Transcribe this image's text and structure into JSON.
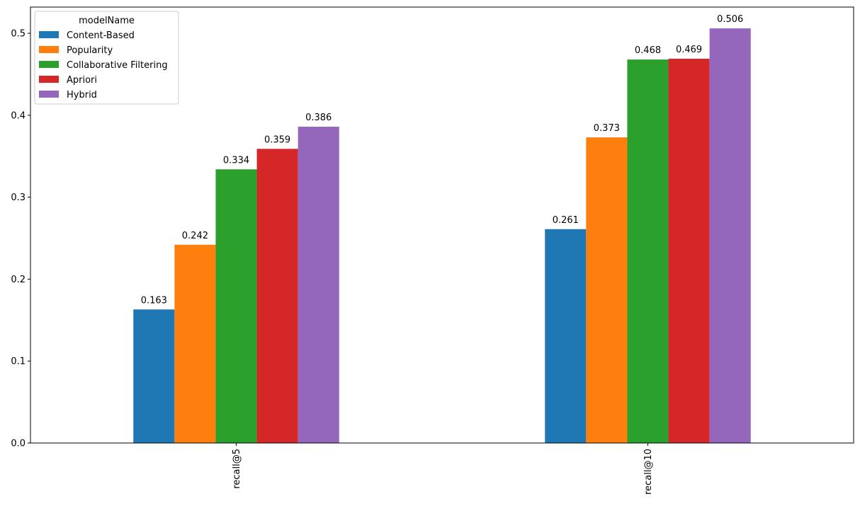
{
  "chart_data": {
    "type": "bar",
    "title": "",
    "xlabel": "",
    "ylabel": "",
    "categories": [
      "recall@5",
      "recall@10"
    ],
    "series": [
      {
        "name": "Content-Based",
        "color": "#1f77b4",
        "values": [
          0.163,
          0.261
        ],
        "labels": [
          "0.163",
          "0.261"
        ]
      },
      {
        "name": "Popularity",
        "color": "#ff7f0e",
        "values": [
          0.242,
          0.373
        ],
        "labels": [
          "0.242",
          "0.373"
        ]
      },
      {
        "name": "Collaborative Filtering",
        "color": "#2ca02c",
        "values": [
          0.334,
          0.468
        ],
        "labels": [
          "0.334",
          "0.468"
        ]
      },
      {
        "name": "Apriori",
        "color": "#d62728",
        "values": [
          0.359,
          0.469
        ],
        "labels": [
          "0.359",
          "0.469"
        ]
      },
      {
        "name": "Hybrid",
        "color": "#9467bd",
        "values": [
          0.386,
          0.506
        ],
        "labels": [
          "0.386",
          "0.506"
        ]
      }
    ],
    "ylim": [
      0,
      0.532
    ],
    "yticks": [
      0.0,
      0.1,
      0.2,
      0.3,
      0.4,
      0.5
    ],
    "ytick_labels": [
      "0.0",
      "0.1",
      "0.2",
      "0.3",
      "0.4",
      "0.5"
    ],
    "xtick_rotation": "vertical",
    "grid": false,
    "legend": {
      "title": "modelName",
      "position": "top-left"
    }
  }
}
